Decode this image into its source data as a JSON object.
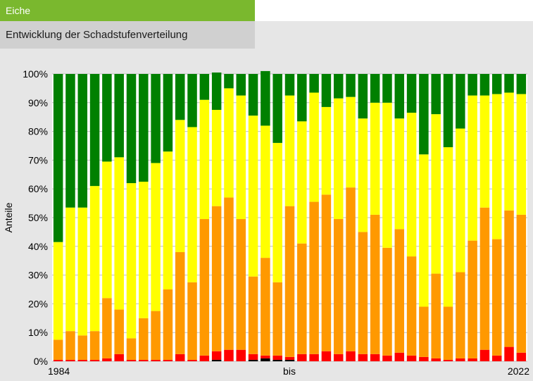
{
  "header": {
    "title": "Eiche",
    "subtitle": "Entwicklung der Schadstufenverteilung"
  },
  "chart_data": {
    "type": "bar",
    "stacked": true,
    "ylabel": "Anteile",
    "ylim": [
      0,
      100
    ],
    "yticks": [
      "0%",
      "10%",
      "20%",
      "30%",
      "40%",
      "50%",
      "60%",
      "70%",
      "80%",
      "90%",
      "100%"
    ],
    "x_labels": [
      "1984",
      "bis",
      "2022"
    ],
    "grid": true,
    "categories": [
      "1984",
      "1985",
      "1986",
      "1987",
      "1988",
      "1989",
      "1990",
      "1991",
      "1992",
      "1993",
      "1994",
      "1995",
      "1996",
      "1997",
      "1998",
      "1999",
      "2000",
      "2001",
      "2002",
      "2003",
      "2004",
      "2005",
      "2006",
      "2007",
      "2008",
      "2009",
      "2010",
      "2011",
      "2012",
      "2013",
      "2014",
      "2015",
      "2016",
      "2017",
      "2018",
      "2019",
      "2020",
      "2021",
      "2022"
    ],
    "series": [
      {
        "color": "#000000",
        "values": [
          0,
          0,
          0,
          0,
          0,
          0,
          0,
          0,
          0,
          0,
          0,
          0,
          0,
          0.5,
          0,
          0,
          0.5,
          1,
          0.5,
          0.5,
          0,
          0,
          0,
          0,
          0,
          0,
          0,
          0,
          0,
          0,
          0,
          0,
          0,
          0,
          0,
          0,
          0,
          0,
          0
        ]
      },
      {
        "color": "#ff0000",
        "values": [
          0.5,
          0.5,
          0.5,
          0.5,
          1,
          2.5,
          0.5,
          0.5,
          0.5,
          0.5,
          2.5,
          0.5,
          2,
          3,
          4,
          4,
          2,
          1,
          1.5,
          1,
          2.5,
          2.5,
          3.5,
          2.5,
          3.5,
          2.5,
          2.5,
          2,
          3,
          2,
          1.5,
          1,
          0.5,
          1,
          1,
          4,
          2,
          5,
          3
        ]
      },
      {
        "color": "#ff9900",
        "values": [
          7,
          10,
          8.5,
          10,
          21,
          15.5,
          7.5,
          14.5,
          17,
          24.5,
          35.5,
          27,
          47.5,
          50.5,
          53,
          45.5,
          27,
          34,
          25.5,
          52.5,
          38.5,
          53,
          54.5,
          47,
          57,
          42.5,
          48.5,
          37.5,
          43,
          34.5,
          17.5,
          29.5,
          18.5,
          30,
          41,
          49.5,
          40.5,
          47.5,
          48
        ]
      },
      {
        "color": "#ffff00",
        "values": [
          34,
          43,
          44.5,
          50.5,
          47.5,
          53,
          54,
          47.5,
          51.5,
          48,
          46,
          54,
          41.5,
          33.5,
          38,
          43,
          56,
          46,
          48.5,
          38.5,
          42.5,
          38,
          30.5,
          42,
          31.5,
          39.5,
          39,
          50.5,
          38.5,
          50,
          53,
          55.5,
          55.5,
          50,
          50.5,
          39,
          50.5,
          41,
          42
        ]
      },
      {
        "color": "#008000",
        "values": [
          58.5,
          46.5,
          46.5,
          39,
          30.5,
          29,
          38,
          37.5,
          31,
          27,
          16,
          18.5,
          9,
          13,
          5,
          7.5,
          14.5,
          19,
          24,
          7.5,
          16.5,
          6.5,
          11.5,
          8.5,
          8,
          15.5,
          10,
          10,
          15.5,
          13.5,
          28,
          14,
          25.5,
          19,
          7.5,
          7.5,
          7,
          6.5,
          7
        ]
      }
    ]
  }
}
